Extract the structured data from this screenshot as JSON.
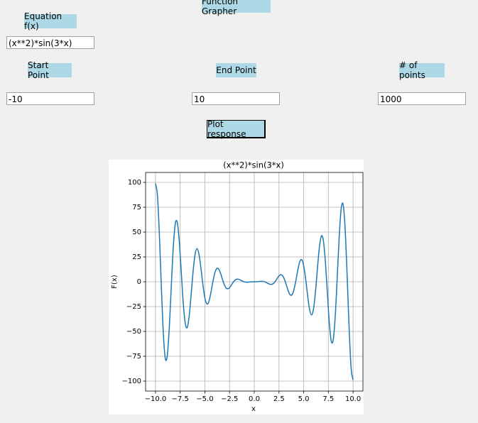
{
  "window": {
    "title": "Function Grapher",
    "equation": {
      "label": "Equation f(x)",
      "value": "(x**2)*sin(3*x)"
    },
    "start": {
      "label": "Start Point",
      "value": "-10"
    },
    "end": {
      "label": "End Point",
      "value": "10"
    },
    "points": {
      "label": "# of points",
      "value": "1000"
    },
    "button": "Plot response"
  },
  "chart_data": {
    "type": "line",
    "title": "(x**2)*sin(3*x)",
    "x_label": "x",
    "y_label": "F(x)",
    "x": [
      -10,
      -9.8,
      -9.6,
      -9.4,
      -9.2,
      -9,
      -8.8,
      -8.6,
      -8.4,
      -8.2,
      -8,
      -7.8,
      -7.6,
      -7.4,
      -7.2,
      -7,
      -6.8,
      -6.6,
      -6.4,
      -6.2,
      -6,
      -5.8,
      -5.6,
      -5.4,
      -5.2,
      -5,
      -4.8,
      -4.6,
      -4.4,
      -4.2,
      -4,
      -3.8,
      -3.6,
      -3.4,
      -3.2,
      -3,
      -2.8,
      -2.6,
      -2.4,
      -2.2,
      -2,
      -1.8,
      -1.6,
      -1.4,
      -1.2,
      -1,
      -0.8,
      -0.6,
      -0.4,
      -0.2,
      0,
      0.2,
      0.4,
      0.6,
      0.8,
      1,
      1.2,
      1.4,
      1.6,
      1.8,
      2,
      2.2,
      2.4,
      2.6,
      2.8,
      3,
      3.2,
      3.4,
      3.6,
      3.8,
      4,
      4.2,
      4.4,
      4.6,
      4.8,
      5,
      5.2,
      5.4,
      5.6,
      5.8,
      6,
      6.2,
      6.4,
      6.6,
      6.8,
      7,
      7.2,
      7.4,
      7.6,
      7.8,
      8,
      8.2,
      8.4,
      8.6,
      8.8,
      9,
      9.2,
      9.4,
      9.6,
      9.8,
      10
    ],
    "series": [
      {
        "name": "F(x)",
        "color": "#1f77b4",
        "values": [
          98.8,
          86.68,
          46.25,
          -6.56,
          -52.85,
          -77.47,
          -73.91,
          -45.78,
          -4.74,
          34.16,
          57.96,
          60.04,
          41.79,
          11.35,
          -19.77,
          -41,
          -46.23,
          -35.45,
          -14.06,
          9.49,
          27.04,
          33.39,
          27.83,
          13.78,
          -2.91,
          -16.26,
          -22.25,
          -19.97,
          -11.46,
          -0.59,
          8.59,
          13.27,
          12.71,
          8.09,
          1.78,
          -3.71,
          -6.7,
          -6.75,
          -4.57,
          -1.51,
          1.12,
          2.5,
          2.55,
          1.71,
          0.64,
          -0.14,
          -0.43,
          -0.35,
          -0.15,
          -0.02,
          0,
          0.02,
          0.15,
          0.35,
          0.43,
          0.14,
          -0.64,
          -1.71,
          -2.55,
          -2.5,
          -1.12,
          1.51,
          4.57,
          6.75,
          6.7,
          3.71,
          -1.78,
          -8.09,
          -12.71,
          -13.27,
          -8.59,
          0.59,
          11.46,
          19.97,
          22.25,
          16.26,
          2.91,
          -13.78,
          -27.83,
          -33.39,
          -27.04,
          -9.49,
          14.06,
          35.45,
          46.23,
          41,
          19.77,
          -11.35,
          -41.79,
          -60.04,
          -57.96,
          -34.16,
          4.74,
          45.78,
          73.91,
          77.47,
          52.85,
          6.56,
          -46.25,
          -86.68,
          -98.8
        ]
      }
    ],
    "xlim": [
      -11,
      11
    ],
    "ylim": [
      -110,
      110
    ],
    "xticks": [
      {
        "value": -10,
        "label": "−10.0"
      },
      {
        "value": -7.5,
        "label": "−7.5"
      },
      {
        "value": -5,
        "label": "−5.0"
      },
      {
        "value": -2.5,
        "label": "−2.5"
      },
      {
        "value": 0,
        "label": "0.0"
      },
      {
        "value": 2.5,
        "label": "2.5"
      },
      {
        "value": 5,
        "label": "5.0"
      },
      {
        "value": 7.5,
        "label": "7.5"
      },
      {
        "value": 10,
        "label": "10.0"
      }
    ],
    "yticks": [
      {
        "value": -100,
        "label": "−100"
      },
      {
        "value": -75,
        "label": "−75"
      },
      {
        "value": -50,
        "label": "−50"
      },
      {
        "value": -25,
        "label": "−25"
      },
      0,
      25,
      50,
      75,
      100
    ],
    "grid": true
  }
}
